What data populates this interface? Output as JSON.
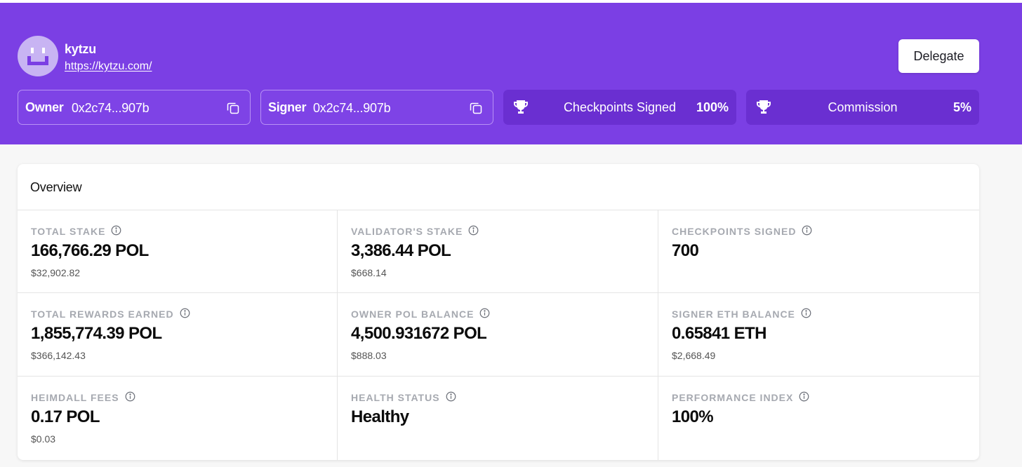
{
  "validator": {
    "name": "kytzu",
    "url": "https://kytzu.com/",
    "avatar_icon": "smiley-face-icon"
  },
  "header": {
    "delegate_label": "Delegate",
    "owner": {
      "label": "Owner",
      "address": "0x2c74...907b"
    },
    "signer": {
      "label": "Signer",
      "address": "0x2c74...907b"
    },
    "stats": [
      {
        "label": "Checkpoints Signed",
        "value": "100%",
        "icon": "trophy-icon"
      },
      {
        "label": "Commission",
        "value": "5%",
        "icon": "trophy-icon"
      }
    ]
  },
  "overview": {
    "title": "Overview",
    "metrics": [
      {
        "label": "TOTAL STAKE",
        "value": "166,766.29 POL",
        "usd": "$32,902.82"
      },
      {
        "label": "VALIDATOR'S STAKE",
        "value": "3,386.44 POL",
        "usd": "$668.14"
      },
      {
        "label": "CHECKPOINTS SIGNED",
        "value": "700",
        "usd": ""
      },
      {
        "label": "TOTAL REWARDS EARNED",
        "value": "1,855,774.39 POL",
        "usd": "$366,142.43"
      },
      {
        "label": "OWNER POL BALANCE",
        "value": "4,500.931672 POL",
        "usd": "$888.03"
      },
      {
        "label": "SIGNER ETH BALANCE",
        "value": "0.65841 ETH",
        "usd": "$2,668.49"
      },
      {
        "label": "HEIMDALL FEES",
        "value": "0.17 POL",
        "usd": "$0.03"
      },
      {
        "label": "HEALTH STATUS",
        "value": "Healthy",
        "usd": ""
      },
      {
        "label": "PERFORMANCE INDEX",
        "value": "100%",
        "usd": ""
      }
    ]
  },
  "colors": {
    "brand_purple": "#7b3fe4",
    "stat_box_purple": "#6a2fd1",
    "label_gray": "#a6a9b0"
  }
}
